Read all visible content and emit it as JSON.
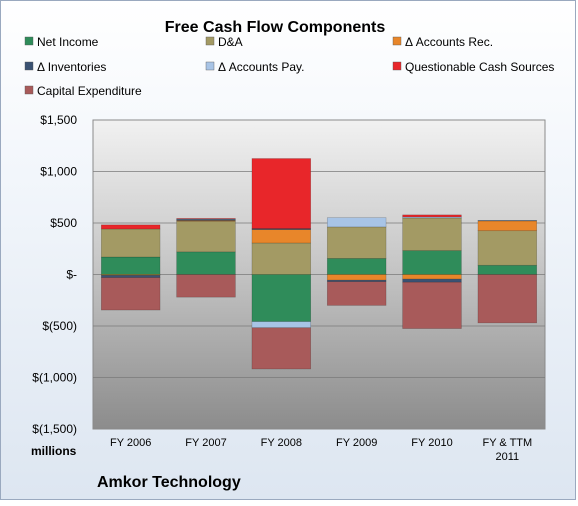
{
  "chart_data": {
    "type": "bar",
    "stacked": true,
    "title": "Free Cash Flow Components",
    "units_label": "millions",
    "company": "Amkor Technology",
    "categories": [
      "FY 2006",
      "FY 2007",
      "FY 2008",
      "FY 2009",
      "FY 2010",
      "FY & TTM 2011"
    ],
    "ylim": [
      -1500,
      1500
    ],
    "yticks": [
      1500,
      1000,
      500,
      0,
      -500,
      -1000,
      -1500
    ],
    "ytick_labels": [
      "$1,500",
      "$1,000",
      "$500",
      "$-",
      "$(500)",
      "$(1,000)",
      "$(1,500)"
    ],
    "grid": true,
    "legend_position": "top",
    "series": [
      {
        "name": "Net Income",
        "color": "#2f8c5a",
        "values": [
          170,
          220,
          -457,
          156,
          232,
          90
        ]
      },
      {
        "name": "D&A",
        "color": "#a39a64",
        "values": [
          272,
          297,
          306,
          306,
          317,
          335
        ]
      },
      {
        "name": "Δ Accounts Rec.",
        "color": "#e8862a",
        "values": [
          -8,
          7,
          130,
          -55,
          -45,
          95
        ]
      },
      {
        "name": "Δ Inventories",
        "color": "#3a5273",
        "values": [
          -22,
          10,
          10,
          -15,
          -30,
          5
        ]
      },
      {
        "name": "Δ Accounts Pay.",
        "color": "#a8c4e6",
        "values": [
          0,
          5,
          -60,
          90,
          10,
          0
        ]
      },
      {
        "name": "Questionable Cash Sources",
        "color": "#e8262a",
        "values": [
          40,
          5,
          680,
          0,
          20,
          0
        ]
      },
      {
        "name": "Capital Expenditure",
        "color": "#a85a5a",
        "values": [
          -315,
          -220,
          -400,
          -230,
          -450,
          -470
        ]
      }
    ]
  }
}
